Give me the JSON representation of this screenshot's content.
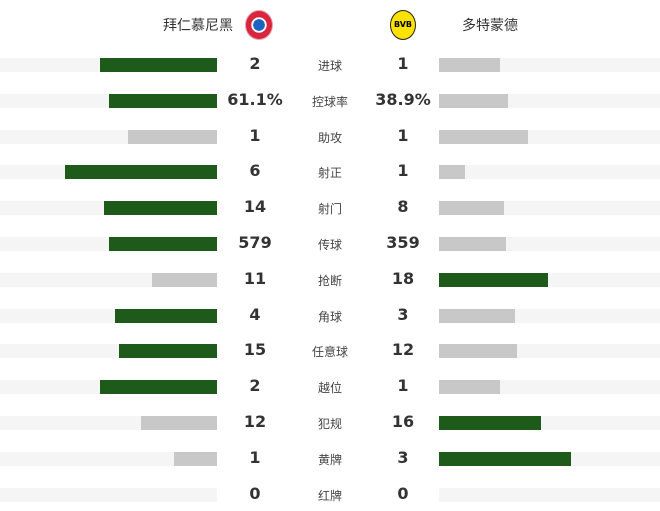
{
  "home_team": {
    "name": "拜仁慕尼黑",
    "logo": "fc-bayern-logo"
  },
  "away_team": {
    "name": "多特蒙德",
    "logo": "bvb-logo",
    "logo_text": "BVB"
  },
  "colors": {
    "leading": "#1e5b1b",
    "trailing": "#c8c8c8",
    "track": "#f5f5f5"
  },
  "stats": [
    {
      "label": "进球",
      "home": "2",
      "away": "1",
      "home_fill": 54,
      "away_fill": 28,
      "leader": "home"
    },
    {
      "label": "控球率",
      "home": "61.1%",
      "away": "38.9%",
      "home_fill": 50,
      "away_fill": 32,
      "leader": "home"
    },
    {
      "label": "助攻",
      "home": "1",
      "away": "1",
      "home_fill": 41,
      "away_fill": 41,
      "leader": "none"
    },
    {
      "label": "射正",
      "home": "6",
      "away": "1",
      "home_fill": 70,
      "away_fill": 12,
      "leader": "home"
    },
    {
      "label": "射门",
      "home": "14",
      "away": "8",
      "home_fill": 52,
      "away_fill": 30,
      "leader": "home"
    },
    {
      "label": "传球",
      "home": "579",
      "away": "359",
      "home_fill": 50,
      "away_fill": 31,
      "leader": "home"
    },
    {
      "label": "抢断",
      "home": "11",
      "away": "18",
      "home_fill": 30,
      "away_fill": 50,
      "leader": "away"
    },
    {
      "label": "角球",
      "home": "4",
      "away": "3",
      "home_fill": 47,
      "away_fill": 35,
      "leader": "home"
    },
    {
      "label": "任意球",
      "home": "15",
      "away": "12",
      "home_fill": 45,
      "away_fill": 36,
      "leader": "home"
    },
    {
      "label": "越位",
      "home": "2",
      "away": "1",
      "home_fill": 54,
      "away_fill": 28,
      "leader": "home"
    },
    {
      "label": "犯规",
      "home": "12",
      "away": "16",
      "home_fill": 35,
      "away_fill": 47,
      "leader": "away"
    },
    {
      "label": "黄牌",
      "home": "1",
      "away": "3",
      "home_fill": 20,
      "away_fill": 61,
      "leader": "away"
    },
    {
      "label": "红牌",
      "home": "0",
      "away": "0",
      "home_fill": 0,
      "away_fill": 0,
      "leader": "none"
    }
  ]
}
